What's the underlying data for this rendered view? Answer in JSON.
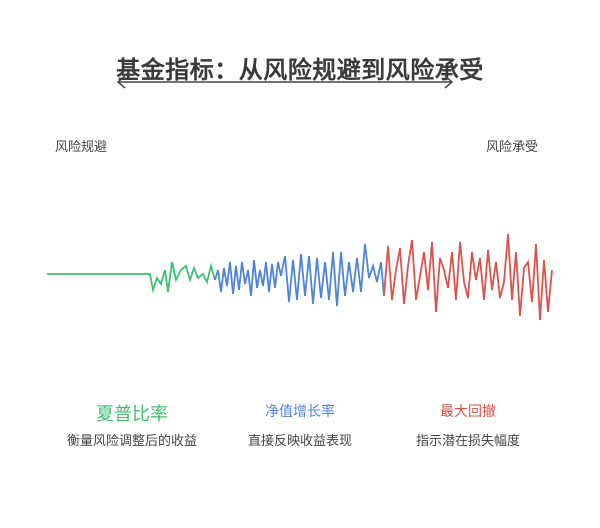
{
  "title": "基金指标：从风险规避到风险承受",
  "ends": {
    "left": "风险规避",
    "right": "风险承受"
  },
  "colors": {
    "green": "#3fbf72",
    "blue": "#4f85d9",
    "red": "#d9534f"
  },
  "metrics": [
    {
      "title": "夏普比率",
      "desc": "衡量风险调整后的收益"
    },
    {
      "title": "净值增长率",
      "desc": "直接反映收益表现"
    },
    {
      "title": "最大回撤",
      "desc": "指示潜在损失幅度"
    }
  ]
}
